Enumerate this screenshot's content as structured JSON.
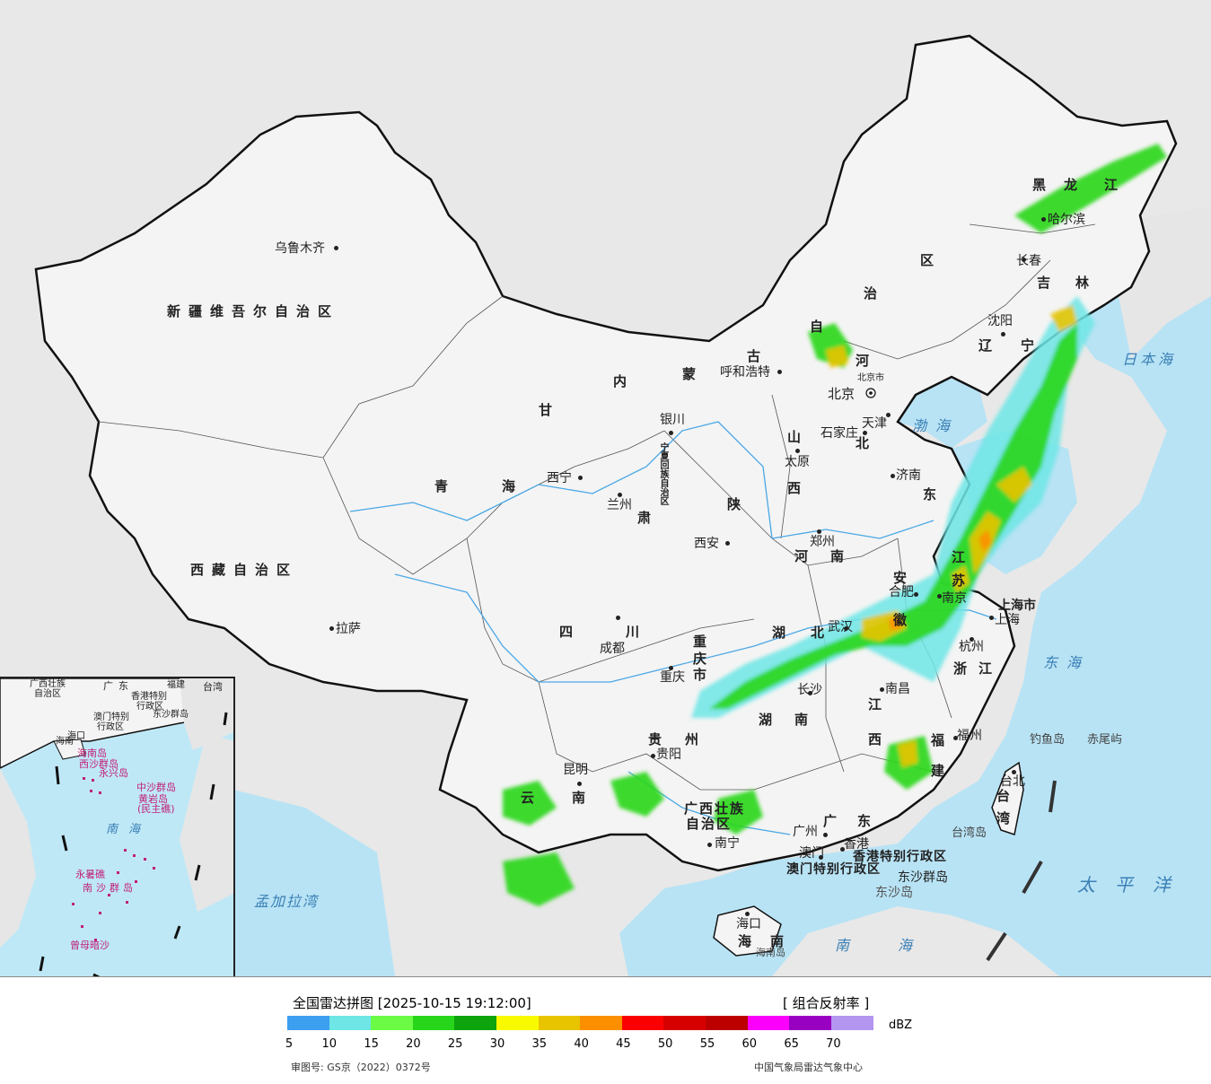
{
  "legend": {
    "title": "全国雷达拼图 [2025-10-15 19:12:00]",
    "product": "[ 组合反射率 ]",
    "unit": "dBZ",
    "ticks": [
      "5",
      "10",
      "15",
      "20",
      "25",
      "30",
      "35",
      "40",
      "45",
      "50",
      "55",
      "60",
      "65",
      "70"
    ],
    "colors": [
      "#3d9ff0",
      "#6ee6e6",
      "#6bfb45",
      "#27d61a",
      "#0ea40d",
      "#f9f900",
      "#e8c400",
      "#fb8f00",
      "#fb0000",
      "#d70000",
      "#bc0000",
      "#fb00fb",
      "#9800c2",
      "#b495ef"
    ],
    "approval": "审图号: GS京（2022）0372号",
    "agency": "中国气象局雷达气象中心"
  },
  "map": {
    "colors": {
      "sea": "#b8e3f5",
      "land": "#f5f5f5",
      "neighbor": "#e6e6e6",
      "border": "#111111",
      "river": "#4aa7e6"
    },
    "cities": [
      {
        "name": "乌鲁木齐",
        "dot": true
      },
      {
        "name": "呼和浩特",
        "dot": true
      },
      {
        "name": "哈尔滨",
        "dot": true
      },
      {
        "name": "长春",
        "dot": true
      },
      {
        "name": "沈阳",
        "dot": true
      },
      {
        "name": "北京",
        "dot": false
      },
      {
        "name": "北京市",
        "dot": false
      },
      {
        "name": "天津",
        "dot": true
      },
      {
        "name": "石家庄",
        "dot": true
      },
      {
        "name": "太原",
        "dot": true
      },
      {
        "name": "济南",
        "dot": true
      },
      {
        "name": "银川",
        "dot": true
      },
      {
        "name": "西宁",
        "dot": true
      },
      {
        "name": "兰州",
        "dot": true
      },
      {
        "name": "西安",
        "dot": true
      },
      {
        "name": "郑州",
        "dot": true
      },
      {
        "name": "合肥",
        "dot": true
      },
      {
        "name": "南京",
        "dot": true
      },
      {
        "name": "上海",
        "dot": true
      },
      {
        "name": "上海市",
        "dot": false
      },
      {
        "name": "杭州",
        "dot": true
      },
      {
        "name": "武汉",
        "dot": true
      },
      {
        "name": "成都",
        "dot": true
      },
      {
        "name": "重庆",
        "dot": true
      },
      {
        "name": "拉萨",
        "dot": true
      },
      {
        "name": "南昌",
        "dot": true
      },
      {
        "name": "长沙",
        "dot": true
      },
      {
        "name": "贵阳",
        "dot": true
      },
      {
        "name": "昆明",
        "dot": true
      },
      {
        "name": "福州",
        "dot": true
      },
      {
        "name": "台北",
        "dot": true
      },
      {
        "name": "南宁",
        "dot": true
      },
      {
        "name": "广州",
        "dot": true
      },
      {
        "name": "香港",
        "dot": true
      },
      {
        "name": "澳门",
        "dot": true
      },
      {
        "name": "海口",
        "dot": true
      }
    ],
    "provinces": [
      "新疆维吾尔自治区",
      "西藏自治区",
      "青海",
      "甘",
      "肃",
      "四",
      "川",
      "内",
      "蒙",
      "古",
      "自",
      "治",
      "区",
      "黑",
      "龙",
      "江",
      "吉",
      "林",
      "辽",
      "宁",
      "河",
      "北",
      "山",
      "西",
      "东",
      "陕",
      "河",
      "南",
      "湖",
      "北",
      "湖",
      "南",
      "江",
      "西",
      "浙",
      "江",
      "福",
      "建",
      "安",
      "徽",
      "江",
      "苏",
      "贵",
      "州",
      "云",
      "南",
      "广",
      "东",
      "广西壮族",
      "自治区",
      "海",
      "南",
      "重",
      "庆",
      "市",
      "台",
      "湾",
      "宁夏回族自治区"
    ],
    "special": [
      "香港特别行政区",
      "澳门特别行政区",
      "东沙群岛",
      "东沙岛",
      "钓鱼岛",
      "赤尾屿",
      "台湾岛",
      "海南岛"
    ],
    "seas": [
      "日本海",
      "渤海",
      "东海",
      "太平洋",
      "南海",
      "孟加拉湾"
    ]
  },
  "inset": {
    "labels": [
      "广西壮族",
      "自治区",
      "广东",
      "福建",
      "台湾",
      "海南",
      "香港特别",
      "行政区",
      "澳门特别",
      "行政区",
      "东沙群岛",
      "海口",
      "海南岛",
      "西沙群岛",
      "永兴岛",
      "中沙群岛",
      "黄岩岛",
      "(民主礁)",
      "南海",
      "永暑礁",
      "南沙群岛",
      "曾母暗沙"
    ]
  }
}
